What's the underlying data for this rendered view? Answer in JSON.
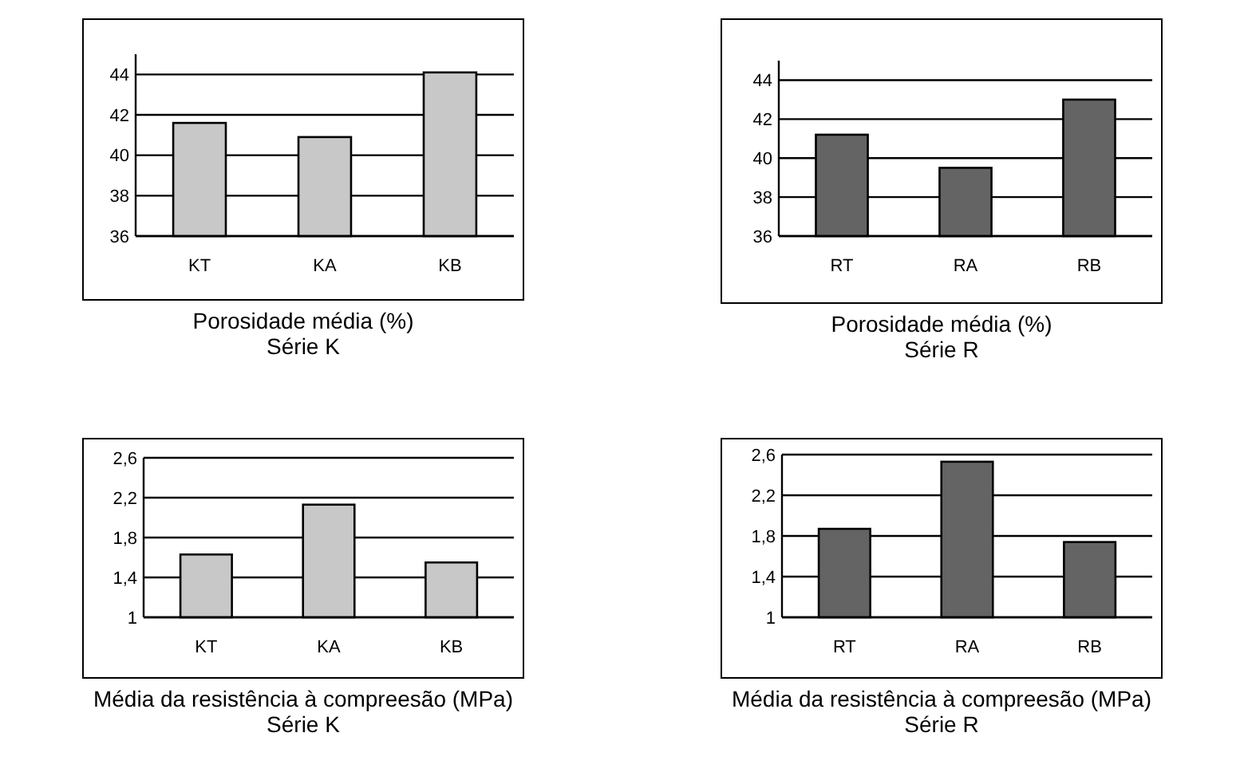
{
  "chart_data": [
    {
      "type": "bar",
      "title": "Porosidade média (%)",
      "subtitle": "Série K",
      "categories": [
        "KT",
        "KA",
        "KB"
      ],
      "values": [
        41.6,
        40.9,
        44.1
      ],
      "color": "#c8c8c8",
      "ylim": [
        36,
        45
      ],
      "yticks": [
        36,
        38,
        40,
        42,
        44
      ],
      "grid": "y"
    },
    {
      "type": "bar",
      "title": "Porosidade média (%)",
      "subtitle": "Série R",
      "categories": [
        "RT",
        "RA",
        "RB"
      ],
      "values": [
        41.2,
        39.5,
        43.0
      ],
      "color": "#646464",
      "ylim": [
        36,
        45
      ],
      "yticks": [
        36,
        38,
        40,
        42,
        44
      ],
      "grid": "y"
    },
    {
      "type": "bar",
      "title": "Média da resistência à compreesão (MPa)",
      "subtitle": "Série K",
      "categories": [
        "KT",
        "KA",
        "KB"
      ],
      "values": [
        1.63,
        2.13,
        1.55
      ],
      "color": "#c8c8c8",
      "ylim": [
        1,
        2.6
      ],
      "yticks": [
        1,
        {
          "value": 1.4,
          "label": "1,4"
        },
        {
          "value": 1.8,
          "label": "1,8"
        },
        {
          "value": 2.2,
          "label": "2,2"
        },
        {
          "value": 2.6,
          "label": "2,6"
        }
      ],
      "grid": "y"
    },
    {
      "type": "bar",
      "title": "Média da resistência à compreesão (MPa)",
      "subtitle": "Série R",
      "categories": [
        "RT",
        "RA",
        "RB"
      ],
      "values": [
        1.87,
        2.53,
        1.74
      ],
      "color": "#646464",
      "ylim": [
        1,
        2.6
      ],
      "yticks": [
        1,
        {
          "value": 1.4,
          "label": "1,4"
        },
        {
          "value": 1.8,
          "label": "1,8"
        },
        {
          "value": 2.2,
          "label": "2,2"
        },
        {
          "value": 2.6,
          "label": "2,6"
        }
      ],
      "grid": "y"
    }
  ]
}
